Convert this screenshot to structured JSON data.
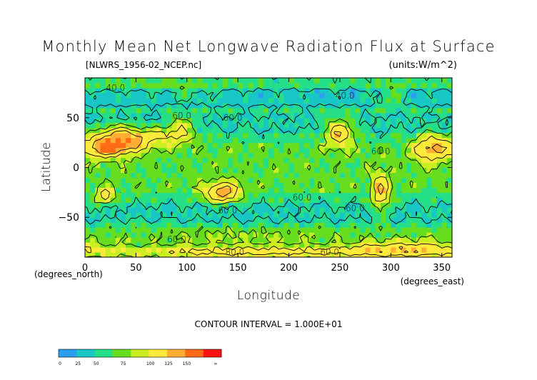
{
  "chart_data": {
    "type": "heatmap",
    "title": "Monthly Mean Net Longwave Radiation Flux at Surface",
    "subtitle_left": "[NLWRS_1956-02_NCEP.nc]",
    "subtitle_right": "(units:W/m^2)",
    "xlabel": "Longitude",
    "ylabel": "Latitude",
    "x_unit_label": "(degrees_east)",
    "y_unit_label": "(degrees_north)",
    "xlim": [
      0,
      360
    ],
    "ylim": [
      -90,
      90
    ],
    "x_ticks": [
      0,
      50,
      100,
      150,
      200,
      250,
      300,
      350
    ],
    "y_ticks": [
      -50,
      0,
      50
    ],
    "contour_interval_text": "CONTOUR INTERVAL = 1.000E+01",
    "contour_labels": [
      {
        "text": "40.0",
        "lon": 30,
        "lat": 80
      },
      {
        "text": "40.0",
        "lon": 255,
        "lat": 72
      },
      {
        "text": "60.0",
        "lon": 95,
        "lat": 52
      },
      {
        "text": "60.0",
        "lon": 145,
        "lat": 50
      },
      {
        "text": "60.0",
        "lon": 290,
        "lat": 16
      },
      {
        "text": "60.0",
        "lon": 213,
        "lat": -30
      },
      {
        "text": "60.0",
        "lon": 265,
        "lat": -41
      },
      {
        "text": "60.0",
        "lon": 140,
        "lat": -43
      },
      {
        "text": "60.0",
        "lon": 90,
        "lat": -72
      },
      {
        "text": "60.0",
        "lon": 240,
        "lat": -85
      },
      {
        "text": "80.0",
        "lon": 147,
        "lat": -85
      }
    ],
    "colorbar": {
      "ticks": [
        "0",
        "25",
        "50",
        "75",
        "100",
        "125",
        "150",
        "∞"
      ],
      "colors": [
        "#2a9ff0",
        "#18c6c6",
        "#25df88",
        "#66dd1f",
        "#c9ef21",
        "#ffe93a",
        "#ffae35",
        "#ff6a16",
        "#ff1414"
      ]
    },
    "grid": false
  }
}
